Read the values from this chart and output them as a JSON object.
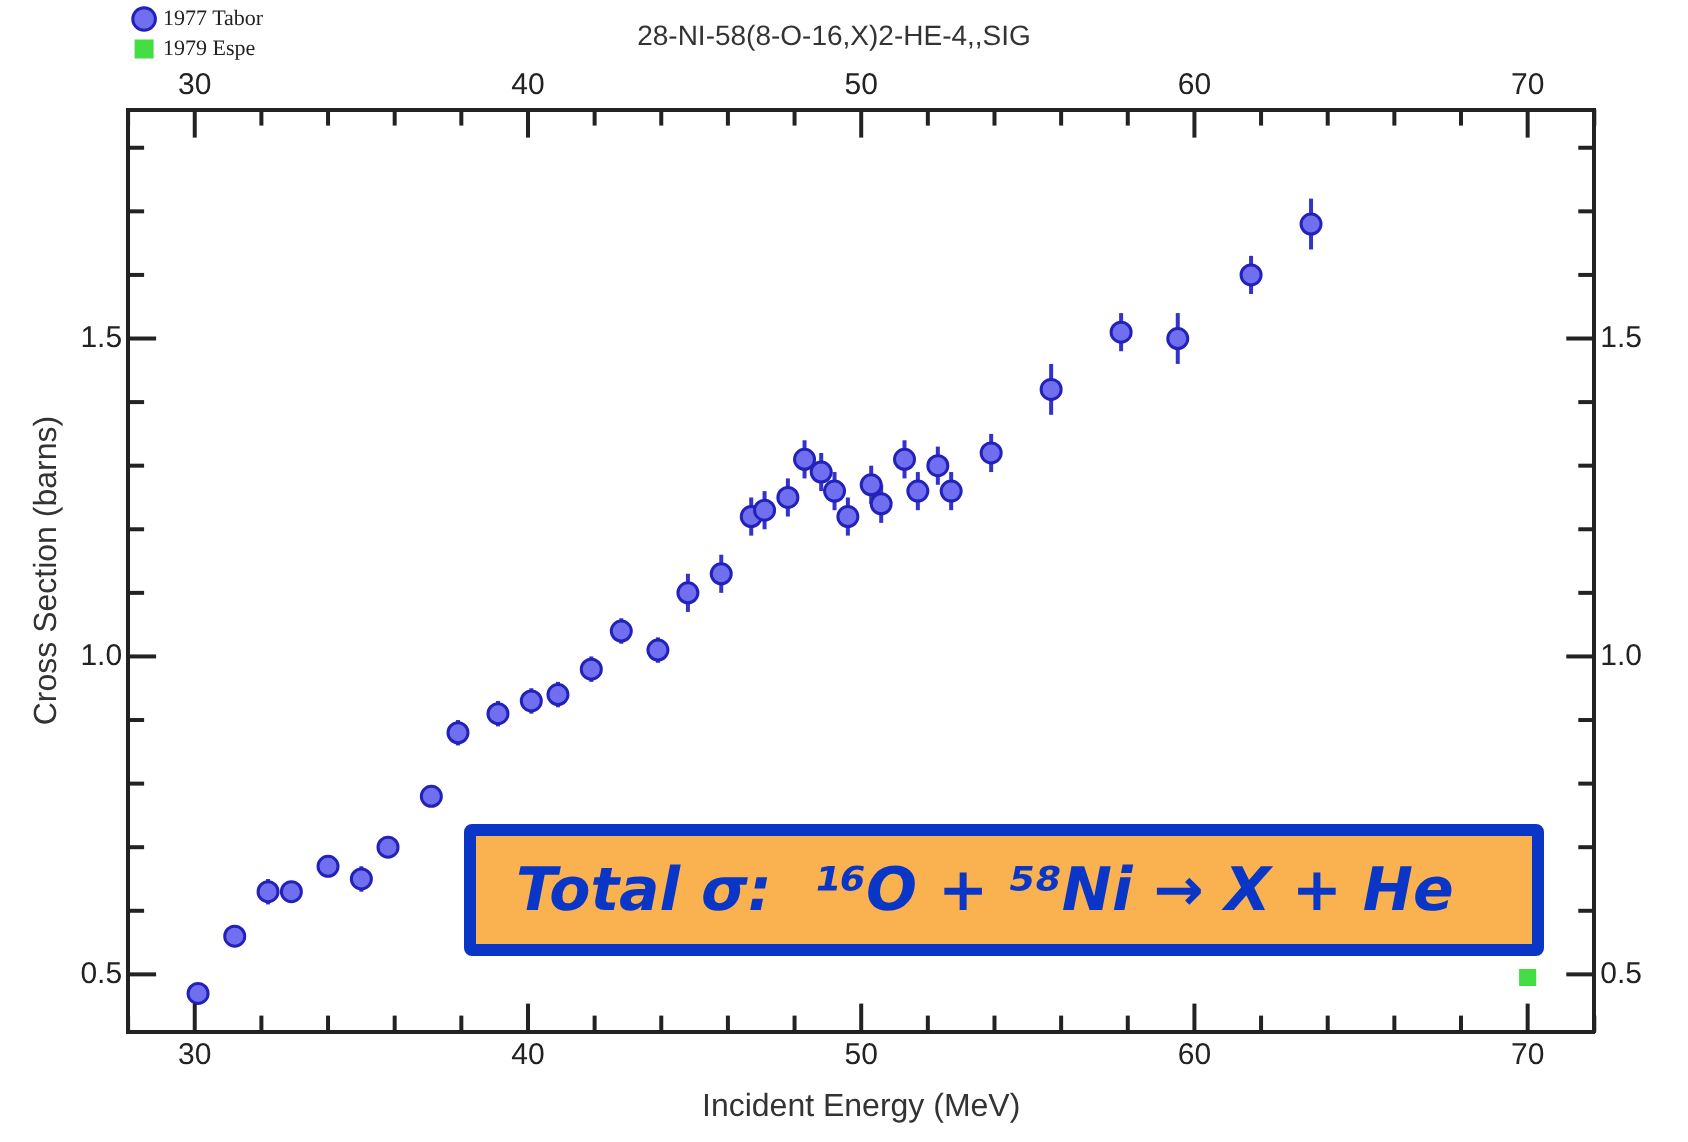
{
  "chart_data": {
    "type": "scatter",
    "title": "28-NI-58(8-O-16,X)2-HE-4,,SIG",
    "xlabel": "Incident Energy (MeV)",
    "ylabel": "Cross Section (barns)",
    "annotations": [
      "Total σ:  ¹⁶O + ⁵⁸Ni → X + He"
    ],
    "legend": "top left",
    "grid": false,
    "xlim": [
      28,
      72
    ],
    "ylim": [
      0.41,
      1.86
    ],
    "x2lim": [
      28,
      72
    ],
    "y2lim": [
      0.41,
      1.86
    ],
    "xticks": [
      {
        "value": 28,
        "label": null
      },
      30,
      {
        "value": 32,
        "label": null
      },
      {
        "value": 34,
        "label": null
      },
      {
        "value": 36,
        "label": null
      },
      {
        "value": 38,
        "label": null
      },
      40,
      {
        "value": 42,
        "label": null
      },
      {
        "value": 44,
        "label": null
      },
      {
        "value": 46,
        "label": null
      },
      {
        "value": 48,
        "label": null
      },
      50,
      {
        "value": 52,
        "label": null
      },
      {
        "value": 54,
        "label": null
      },
      {
        "value": 56,
        "label": null
      },
      {
        "value": 58,
        "label": null
      },
      60,
      {
        "value": 62,
        "label": null
      },
      {
        "value": 64,
        "label": null
      },
      {
        "value": 66,
        "label": null
      },
      {
        "value": 68,
        "label": null
      },
      70,
      {
        "value": 72,
        "label": null
      }
    ],
    "x2ticks": [
      {
        "value": 28,
        "label": null
      },
      30,
      {
        "value": 32,
        "label": null
      },
      {
        "value": 34,
        "label": null
      },
      {
        "value": 36,
        "label": null
      },
      {
        "value": 38,
        "label": null
      },
      40,
      {
        "value": 42,
        "label": null
      },
      {
        "value": 44,
        "label": null
      },
      {
        "value": 46,
        "label": null
      },
      {
        "value": 48,
        "label": null
      },
      50,
      {
        "value": 52,
        "label": null
      },
      {
        "value": 54,
        "label": null
      },
      {
        "value": 56,
        "label": null
      },
      {
        "value": 58,
        "label": null
      },
      60,
      {
        "value": 62,
        "label": null
      },
      {
        "value": 64,
        "label": null
      },
      {
        "value": 66,
        "label": null
      },
      {
        "value": 68,
        "label": null
      },
      70,
      {
        "value": 72,
        "label": null
      }
    ],
    "yticks": [
      {
        "value": 0.5,
        "label": "0.5"
      },
      {
        "value": 0.6,
        "label": null
      },
      {
        "value": 0.7,
        "label": null
      },
      {
        "value": 0.8,
        "label": null
      },
      {
        "value": 0.9,
        "label": null
      },
      {
        "value": 1.0,
        "label": "1.0"
      },
      {
        "value": 1.1,
        "label": null
      },
      {
        "value": 1.2,
        "label": null
      },
      {
        "value": 1.3,
        "label": null
      },
      {
        "value": 1.4,
        "label": null
      },
      {
        "value": 1.5,
        "label": "1.5"
      },
      {
        "value": 1.6,
        "label": null
      },
      {
        "value": 1.7,
        "label": null
      },
      {
        "value": 1.8,
        "label": null
      }
    ],
    "y2ticks": [
      {
        "value": 0.5,
        "label": "0.5"
      },
      {
        "value": 0.6,
        "label": null
      },
      {
        "value": 0.7,
        "label": null
      },
      {
        "value": 0.8,
        "label": null
      },
      {
        "value": 0.9,
        "label": null
      },
      {
        "value": 1.0,
        "label": "1.0"
      },
      {
        "value": 1.1,
        "label": null
      },
      {
        "value": 1.2,
        "label": null
      },
      {
        "value": 1.3,
        "label": null
      },
      {
        "value": 1.4,
        "label": null
      },
      {
        "value": 1.5,
        "label": "1.5"
      },
      {
        "value": 1.6,
        "label": null
      },
      {
        "value": 1.7,
        "label": null
      },
      {
        "value": 1.8,
        "label": null
      }
    ],
    "series": [
      {
        "name": "1977 Tabor",
        "color": "#6f6ff0",
        "marker": "circle",
        "x": [
          30.1,
          31.2,
          32.2,
          32.9,
          34.0,
          35.0,
          35.8,
          37.1,
          37.9,
          39.1,
          40.1,
          40.9,
          41.9,
          42.8,
          43.9,
          44.8,
          45.8,
          46.7,
          47.1,
          47.8,
          48.3,
          48.8,
          49.2,
          49.6,
          50.3,
          50.6,
          51.3,
          51.7,
          52.3,
          52.7,
          53.9,
          55.7,
          57.8,
          59.5,
          61.7,
          63.5
        ],
        "values": [
          0.47,
          0.56,
          0.63,
          0.63,
          0.67,
          0.65,
          0.7,
          0.78,
          0.88,
          0.91,
          0.93,
          0.94,
          0.98,
          1.04,
          1.01,
          1.1,
          1.13,
          1.22,
          1.23,
          1.25,
          1.31,
          1.29,
          1.26,
          1.22,
          1.27,
          1.24,
          1.31,
          1.26,
          1.3,
          1.26,
          1.32,
          1.42,
          1.51,
          1.5,
          1.6,
          1.68
        ],
        "errors": [
          0.01,
          0.01,
          0.02,
          0.01,
          0.01,
          0.02,
          0.01,
          0.01,
          0.02,
          0.02,
          0.02,
          0.02,
          0.02,
          0.02,
          0.02,
          0.03,
          0.03,
          0.03,
          0.03,
          0.03,
          0.03,
          0.03,
          0.03,
          0.03,
          0.03,
          0.03,
          0.03,
          0.03,
          0.03,
          0.03,
          0.03,
          0.04,
          0.03,
          0.04,
          0.03,
          0.04
        ]
      },
      {
        "name": "1979 Espe",
        "color": "#44dd44",
        "marker": "square",
        "x": [
          70.0
        ],
        "values": [
          0.495
        ]
      }
    ]
  }
}
